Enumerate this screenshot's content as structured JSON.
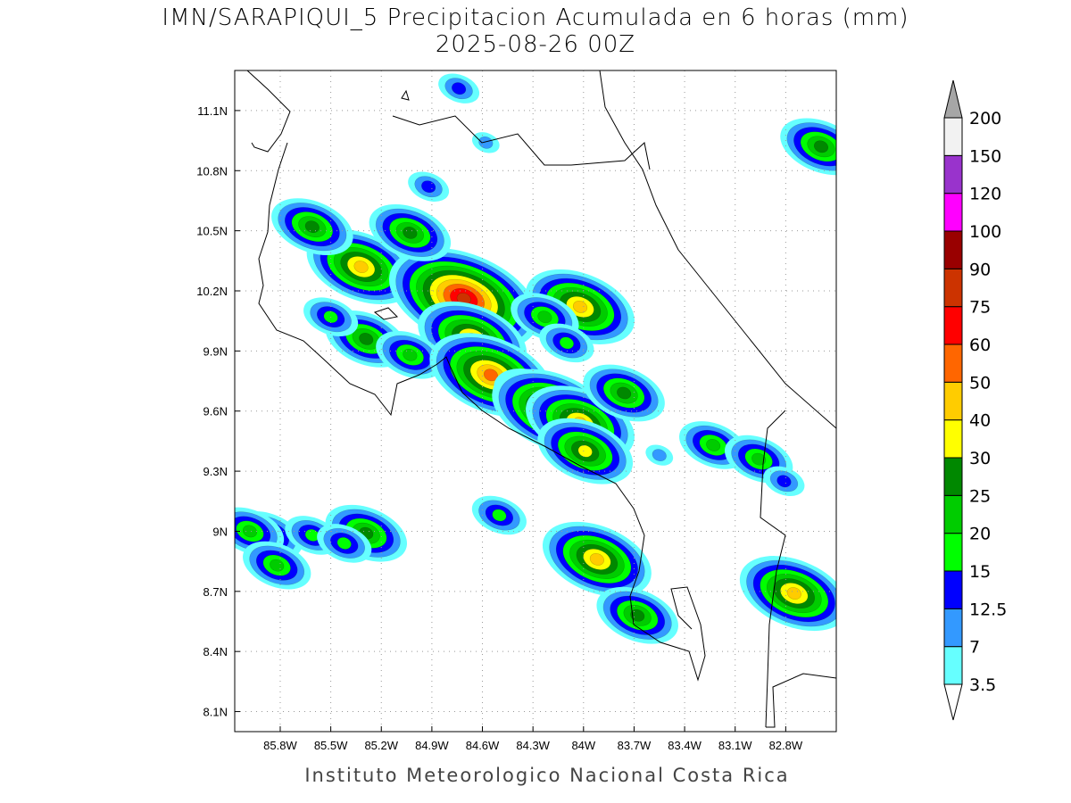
{
  "map": {
    "title": "IMN/SARAPIQUI_5 Precipitacion Acumulada en 6 horas (mm)",
    "subtitle": "2025-08-26 00Z",
    "footer": "Instituto Meteorologico Nacional Costa Rica",
    "xlim": [
      -86.07,
      -82.5
    ],
    "ylim": [
      8.0,
      11.3
    ],
    "xticks": [
      {
        "value": -85.8,
        "label": "85.8W"
      },
      {
        "value": -85.5,
        "label": "85.5W"
      },
      {
        "value": -85.2,
        "label": "85.2W"
      },
      {
        "value": -84.9,
        "label": "84.9W"
      },
      {
        "value": -84.6,
        "label": "84.6W"
      },
      {
        "value": -84.3,
        "label": "84.3W"
      },
      {
        "value": -84.0,
        "label": "84W"
      },
      {
        "value": -83.7,
        "label": "83.7W"
      },
      {
        "value": -83.4,
        "label": "83.4W"
      },
      {
        "value": -83.1,
        "label": "83.1W"
      },
      {
        "value": -82.8,
        "label": "82.8W"
      }
    ],
    "yticks": [
      {
        "value": 8.1,
        "label": "8.1N"
      },
      {
        "value": 8.4,
        "label": "8.4N"
      },
      {
        "value": 8.7,
        "label": "8.7N"
      },
      {
        "value": 9.0,
        "label": "9N"
      },
      {
        "value": 9.3,
        "label": "9.3N"
      },
      {
        "value": 9.6,
        "label": "9.6N"
      },
      {
        "value": 9.9,
        "label": "9.9N"
      },
      {
        "value": 10.2,
        "label": "10.2N"
      },
      {
        "value": 10.5,
        "label": "10.5N"
      },
      {
        "value": 10.8,
        "label": "10.8N"
      },
      {
        "value": 11.1,
        "label": "11.1N"
      }
    ],
    "grid": true,
    "colorbar": {
      "levels": [
        3.5,
        7,
        12.5,
        15,
        20,
        25,
        30,
        40,
        50,
        60,
        75,
        90,
        100,
        120,
        150,
        200
      ],
      "colors": [
        "#ffffff",
        "#66ffff",
        "#3399ff",
        "#0000ff",
        "#00ff00",
        "#00cc00",
        "#008800",
        "#ffff00",
        "#ffcc00",
        "#ff6600",
        "#ff0000",
        "#cc3300",
        "#990000",
        "#ff00ff",
        "#9933cc",
        "#f2f2f2",
        "#a6a6a6"
      ]
    },
    "cells": [
      {
        "lon": -85.32,
        "lat": 10.32,
        "max": 40
      },
      {
        "lon": -84.71,
        "lat": 10.16,
        "max": 75
      },
      {
        "lon": -85.61,
        "lat": 10.52,
        "max": 25
      },
      {
        "lon": -85.03,
        "lat": 10.49,
        "max": 25
      },
      {
        "lon": -84.92,
        "lat": 10.72,
        "max": 12.5
      },
      {
        "lon": -84.02,
        "lat": 10.12,
        "max": 40
      },
      {
        "lon": -84.23,
        "lat": 10.07,
        "max": 20
      },
      {
        "lon": -84.66,
        "lat": 9.96,
        "max": 40
      },
      {
        "lon": -85.29,
        "lat": 9.96,
        "max": 25
      },
      {
        "lon": -85.03,
        "lat": 9.88,
        "max": 20
      },
      {
        "lon": -84.55,
        "lat": 9.78,
        "max": 50
      },
      {
        "lon": -84.29,
        "lat": 9.67,
        "max": 25
      },
      {
        "lon": -84.18,
        "lat": 9.6,
        "max": 50
      },
      {
        "lon": -84.02,
        "lat": 9.54,
        "max": 40
      },
      {
        "lon": -83.76,
        "lat": 9.69,
        "max": 25
      },
      {
        "lon": -83.99,
        "lat": 9.4,
        "max": 30
      },
      {
        "lon": -83.23,
        "lat": 9.43,
        "max": 20
      },
      {
        "lon": -82.96,
        "lat": 9.36,
        "max": 20
      },
      {
        "lon": -82.59,
        "lat": 10.92,
        "max": 25
      },
      {
        "lon": -83.92,
        "lat": 8.86,
        "max": 40
      },
      {
        "lon": -83.68,
        "lat": 8.58,
        "max": 25
      },
      {
        "lon": -82.75,
        "lat": 8.69,
        "max": 40
      },
      {
        "lon": -85.29,
        "lat": 8.99,
        "max": 25
      },
      {
        "lon": -85.87,
        "lat": 8.98,
        "max": 20
      },
      {
        "lon": -85.98,
        "lat": 9.0,
        "max": 20
      },
      {
        "lon": -85.61,
        "lat": 8.98,
        "max": 15
      },
      {
        "lon": -85.42,
        "lat": 8.94,
        "max": 15
      },
      {
        "lon": -84.5,
        "lat": 9.08,
        "max": 15
      },
      {
        "lon": -83.55,
        "lat": 9.38,
        "max": 7
      },
      {
        "lon": -85.82,
        "lat": 8.83,
        "max": 20
      },
      {
        "lon": -84.74,
        "lat": 11.21,
        "max": 12.5
      },
      {
        "lon": -84.58,
        "lat": 10.94,
        "max": 7
      },
      {
        "lon": -85.5,
        "lat": 10.07,
        "max": 15
      },
      {
        "lon": -82.81,
        "lat": 9.25,
        "max": 12.5
      },
      {
        "lon": -84.1,
        "lat": 9.94,
        "max": 15
      }
    ]
  }
}
